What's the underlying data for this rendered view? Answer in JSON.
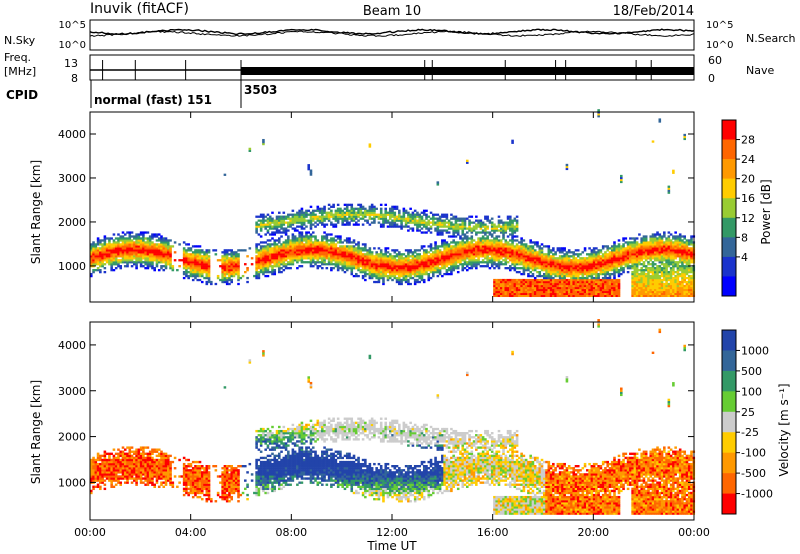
{
  "header": {
    "station": "Inuvik (fitACF)",
    "beam": "Beam 10",
    "date": "18/Feb/2014"
  },
  "panels": {
    "noise": {
      "left_label": "N.Sky",
      "right_label": "N.Search",
      "left_ticks": [
        "10^5",
        "10^0"
      ],
      "right_ticks": [
        "10^5",
        "10^0"
      ]
    },
    "freq": {
      "left_label_1": "Freq.",
      "left_label_2": "[MHz]",
      "right_label": "Nave",
      "left_ticks": [
        "13",
        "8"
      ],
      "right_ticks": [
        "60",
        "0"
      ]
    },
    "cpid": {
      "label": "CPID",
      "segments": [
        {
          "name": "normal (fast) 151",
          "start_hour": 0
        },
        {
          "name": "3503",
          "start_hour": 6.0
        }
      ]
    }
  },
  "chart_data": [
    {
      "type": "heatmap",
      "name": "power",
      "ylabel": "Slant Range [km]",
      "xlim": [
        0,
        24
      ],
      "ylim": [
        180,
        4500
      ],
      "colorbar": {
        "label": "Power [dB]",
        "ticks": [
          "28",
          "24",
          "20",
          "16",
          "12",
          "8",
          "4"
        ],
        "colors": [
          "#ff0000",
          "#ff6600",
          "#ff9900",
          "#ffcc00",
          "#99cc33",
          "#339966",
          "#336699",
          "#1a33cc",
          "#0000ff"
        ]
      }
    },
    {
      "type": "heatmap",
      "name": "velocity",
      "ylabel": "Slant Range [km]",
      "xlabel": "Time UT",
      "xlim": [
        0,
        24
      ],
      "ylim": [
        180,
        4500
      ],
      "x_ticks": [
        "00:00",
        "04:00",
        "08:00",
        "12:00",
        "16:00",
        "20:00",
        "00:00"
      ],
      "y_ticks": [
        "1000",
        "2000",
        "3000",
        "4000"
      ],
      "colorbar": {
        "label": "Velocity [m s⁻¹]",
        "ticks": [
          "1000",
          "500",
          "100",
          "25",
          "-25",
          "-100",
          "-500",
          "-1000"
        ],
        "colors": [
          "#2244aa",
          "#336699",
          "#339966",
          "#66cc33",
          "#cccccc",
          "#ffcc00",
          "#ff9900",
          "#ff6600",
          "#ff0000"
        ]
      }
    }
  ]
}
